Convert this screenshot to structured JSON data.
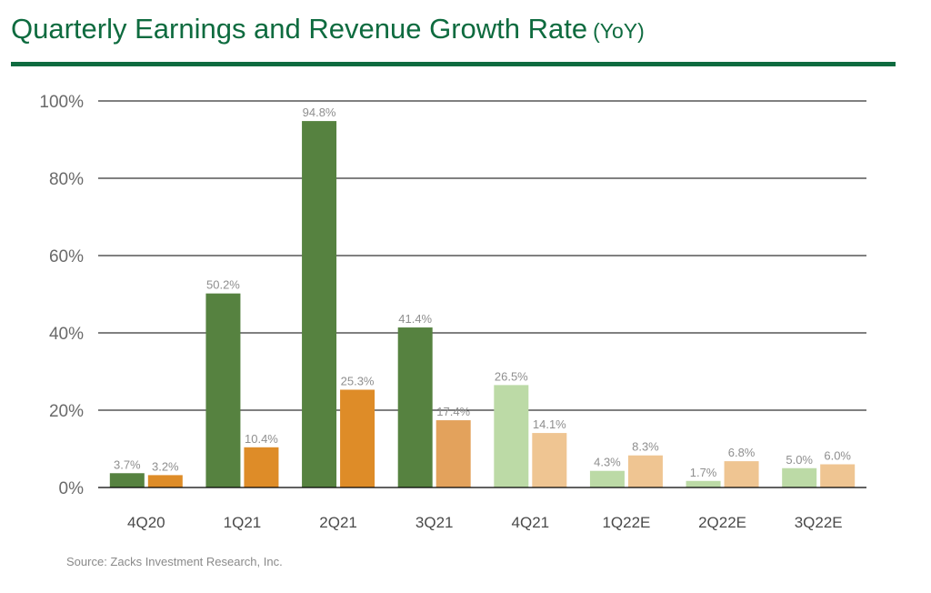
{
  "title": "Quarterly Earnings and Revenue Growth Rate",
  "title_suffix": "(YoY)",
  "source": "Source: Zacks Investment Research, Inc.",
  "colors": {
    "title": "#0e6b3f",
    "rule": "#0e6b3f",
    "earnings_actual": "#568240",
    "revenue_actual": "#de8c28",
    "revenue_actual_light": "#e3a25c",
    "earnings_estimate": "#bcdaa6",
    "revenue_estimate": "#efc592",
    "label": "#8f8f8f",
    "axis_text": "#6a6a6a",
    "gridline": "#000000"
  },
  "chart_data": {
    "type": "bar",
    "title": "Quarterly Earnings and Revenue Growth Rate (YoY)",
    "xlabel": "",
    "ylabel": "",
    "ylim": [
      0,
      100
    ],
    "yticks": [
      0,
      20,
      40,
      60,
      80,
      100
    ],
    "ytick_labels": [
      "0%",
      "20%",
      "40%",
      "60%",
      "80%",
      "100%"
    ],
    "grid": true,
    "legend": "none",
    "categories": [
      "4Q20",
      "1Q21",
      "2Q21",
      "3Q21",
      "4Q21",
      "1Q22E",
      "2Q22E",
      "3Q22E"
    ],
    "series": [
      {
        "values": [
          3.7,
          50.2,
          94.8,
          41.4,
          26.5,
          4.3,
          1.7,
          5.0
        ],
        "data_labels": [
          "3.7%",
          "50.2%",
          "94.8%",
          "41.4%",
          "26.5%",
          "4.3%",
          "1.7%",
          "5.0%"
        ],
        "colors": [
          "#568240",
          "#568240",
          "#568240",
          "#568240",
          "#bcdaa6",
          "#bcdaa6",
          "#bcdaa6",
          "#bcdaa6"
        ]
      },
      {
        "values": [
          3.2,
          10.4,
          25.3,
          17.4,
          14.1,
          8.3,
          6.8,
          6.0
        ],
        "data_labels": [
          "3.2%",
          "10.4%",
          "25.3%",
          "17.4%",
          "14.1%",
          "8.3%",
          "6.8%",
          "6.0%"
        ],
        "colors": [
          "#de8c28",
          "#de8c28",
          "#de8c28",
          "#e3a25c",
          "#efc592",
          "#efc592",
          "#efc592",
          "#efc592"
        ]
      }
    ]
  }
}
